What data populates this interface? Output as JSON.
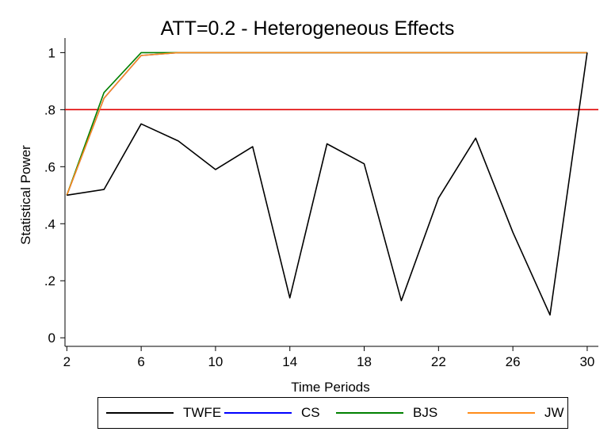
{
  "chart_data": {
    "type": "line",
    "title": "ATT=0.2 - Heterogeneous Effects",
    "xlabel": "Time Periods",
    "ylabel": "Statistical Power",
    "x": [
      2,
      4,
      6,
      8,
      10,
      12,
      14,
      16,
      18,
      20,
      22,
      24,
      26,
      28,
      30
    ],
    "xticks": [
      2,
      6,
      10,
      14,
      18,
      22,
      26,
      30
    ],
    "xtick_labels": [
      "2",
      "6",
      "10",
      "14",
      "18",
      "22",
      "26",
      "30"
    ],
    "xlim": [
      1.9,
      30.6
    ],
    "ylim": [
      -0.03,
      1.04
    ],
    "yticks": [
      0,
      0.2,
      0.4,
      0.6,
      0.8,
      1
    ],
    "ytick_labels": [
      "0",
      ".2",
      ".4",
      ".6",
      ".8",
      "1"
    ],
    "reference_line": {
      "y": 0.8,
      "color": "#e00000"
    },
    "grid": false,
    "legend_position": "bottom",
    "series": [
      {
        "name": "TWFE",
        "color": "#000000",
        "values": [
          0.5,
          0.52,
          0.75,
          0.69,
          0.59,
          0.67,
          0.14,
          0.68,
          0.61,
          0.13,
          0.49,
          0.7,
          0.37,
          0.08,
          1.0
        ]
      },
      {
        "name": "CS",
        "color": "#0000ff",
        "values": [
          0.5,
          0.84,
          0.99,
          1.0,
          1.0,
          1.0,
          1.0,
          1.0,
          1.0,
          1.0,
          1.0,
          1.0,
          1.0,
          1.0,
          1.0
        ]
      },
      {
        "name": "BJS",
        "color": "#008000",
        "values": [
          0.5,
          0.86,
          1.0,
          1.0,
          1.0,
          1.0,
          1.0,
          1.0,
          1.0,
          1.0,
          1.0,
          1.0,
          1.0,
          1.0,
          1.0
        ]
      },
      {
        "name": "JW",
        "color": "#ff8c1a",
        "values": [
          0.5,
          0.84,
          0.99,
          1.0,
          1.0,
          1.0,
          1.0,
          1.0,
          1.0,
          1.0,
          1.0,
          1.0,
          1.0,
          1.0,
          1.0
        ]
      }
    ]
  }
}
